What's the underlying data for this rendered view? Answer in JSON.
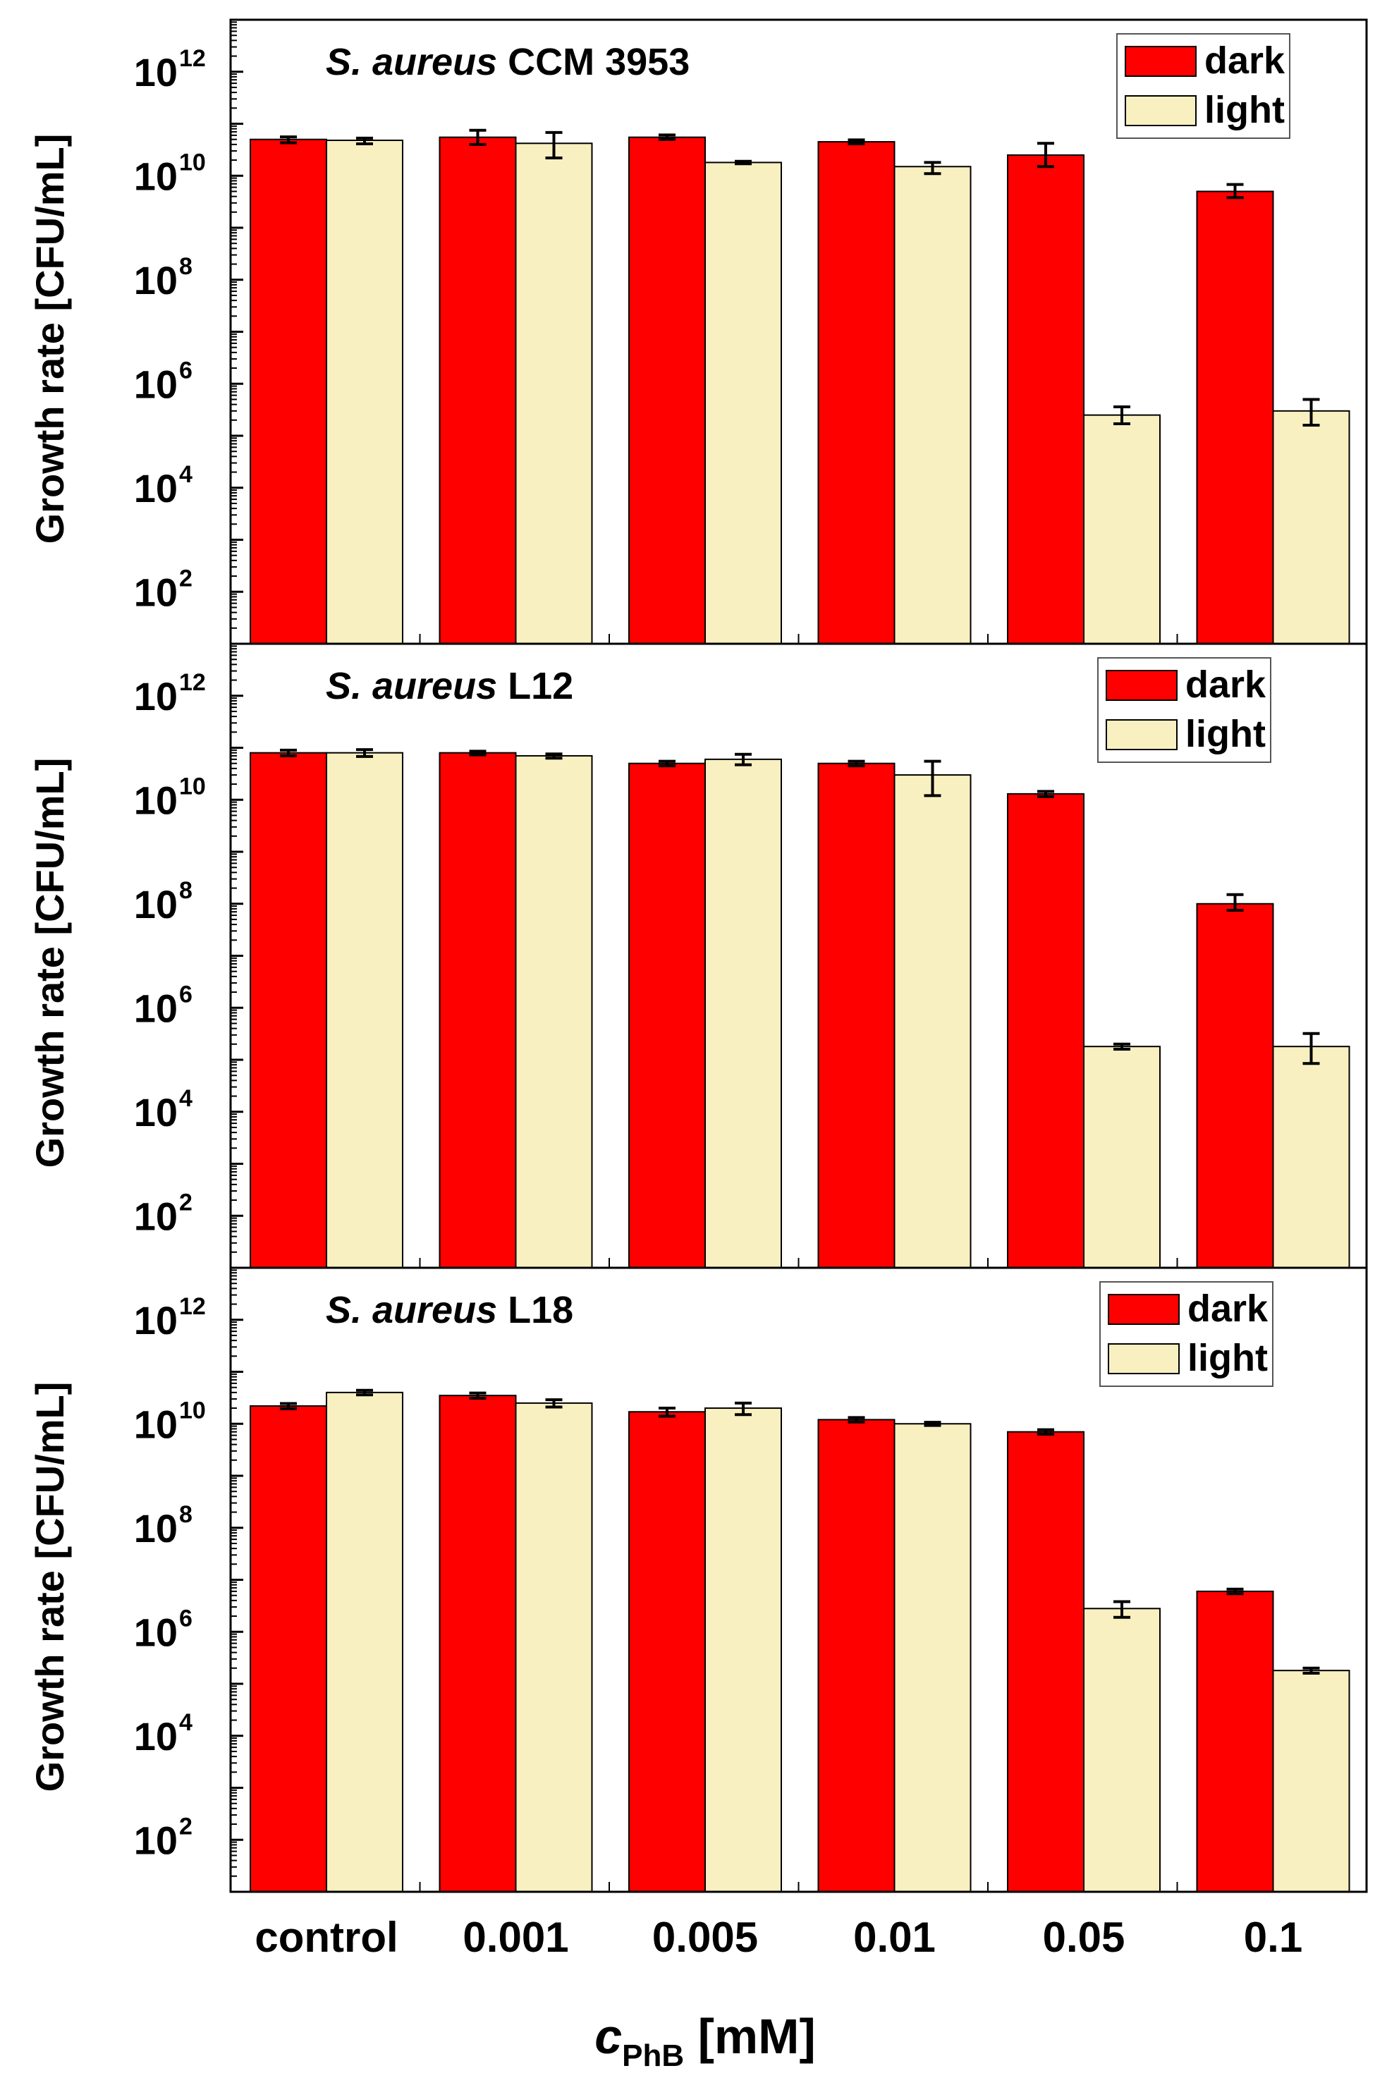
{
  "chart_data": {
    "type": "bar",
    "yscale": "log",
    "categories": [
      "control",
      "0.001",
      "0.005",
      "0.01",
      "0.05",
      "0.1"
    ],
    "xlabel": {
      "main": "c",
      "sub": "PhB",
      "unit": " [mM]"
    },
    "ylabel": "Growth rate [CFU/mL]",
    "ylim": [
      10,
      10000000000000.0
    ],
    "ytick_exponents": [
      2,
      4,
      6,
      8,
      10,
      12
    ],
    "ytick_base": "10",
    "colors": {
      "dark": "#ff0000",
      "light": "#f8f0c0",
      "axis": "#000000"
    },
    "legend": {
      "position": "top-right",
      "entries": [
        "dark",
        "light"
      ]
    },
    "panels": [
      {
        "title_italic": "S. aureus",
        "title_rest": " CCM 3953",
        "series": [
          {
            "name": "dark",
            "values": [
              50000000000.0,
              55000000000.0,
              55000000000.0,
              45000000000.0,
              25000000000.0,
              5000000000.0
            ],
            "err_low": [
              43000000000.0,
              40000000000.0,
              50000000000.0,
              41000000000.0,
              15000000000.0,
              3800000000.0
            ],
            "err_high": [
              56000000000.0,
              75000000000.0,
              61000000000.0,
              49000000000.0,
              42000000000.0,
              6800000000.0
            ]
          },
          {
            "name": "light",
            "values": [
              48000000000.0,
              42000000000.0,
              18000000000.0,
              15000000000.0,
              250000.0,
              300000.0
            ],
            "err_low": [
              41000000000.0,
              22000000000.0,
              17000000000.0,
              11000000000.0,
              170000.0,
              160000.0
            ],
            "err_high": [
              53000000000.0,
              68000000000.0,
              19000000000.0,
              18000000000.0,
              360000.0,
              500000.0
            ]
          }
        ]
      },
      {
        "title_italic": "S. aureus",
        "title_rest": " L12",
        "series": [
          {
            "name": "dark",
            "values": [
              80000000000.0,
              80000000000.0,
              50000000000.0,
              50000000000.0,
              13000000000.0,
              100000000.0
            ],
            "err_low": [
              70000000000.0,
              73000000000.0,
              45000000000.0,
              45000000000.0,
              11500000000.0,
              75000000.0
            ],
            "err_high": [
              90000000000.0,
              86000000000.0,
              55000000000.0,
              55000000000.0,
              14500000000.0,
              150000000.0
            ]
          },
          {
            "name": "light",
            "values": [
              80000000000.0,
              70000000000.0,
              60000000000.0,
              30000000000.0,
              180000.0,
              180000.0
            ],
            "err_low": [
              68000000000.0,
              63000000000.0,
              47000000000.0,
              12000000000.0,
              160000.0,
              85000.0
            ],
            "err_high": [
              92000000000.0,
              76000000000.0,
              75000000000.0,
              55000000000.0,
              200000.0,
              320000.0
            ]
          }
        ]
      },
      {
        "title_italic": "S. aureus",
        "title_rest": " L18",
        "series": [
          {
            "name": "dark",
            "values": [
              22000000000.0,
              35000000000.0,
              17000000000.0,
              12000000000.0,
              7000000000.0,
              6000000.0
            ],
            "err_low": [
              19500000000.0,
              31000000000.0,
              14000000000.0,
              10800000000.0,
              6300000000.0,
              5400000.0
            ],
            "err_high": [
              24500000000.0,
              39000000000.0,
              20000000000.0,
              13200000000.0,
              7700000000.0,
              6600000.0
            ]
          },
          {
            "name": "light",
            "values": [
              40000000000.0,
              25000000000.0,
              20000000000.0,
              10000000000.0,
              2800000.0,
              180000.0
            ],
            "err_low": [
              36000000000.0,
              21000000000.0,
              15000000000.0,
              9300000000.0,
              1900000.0,
              160000.0
            ],
            "err_high": [
              44000000000.0,
              29000000000.0,
              25000000000.0,
              10700000000.0,
              3800000.0,
              200000.0
            ]
          }
        ]
      }
    ]
  }
}
